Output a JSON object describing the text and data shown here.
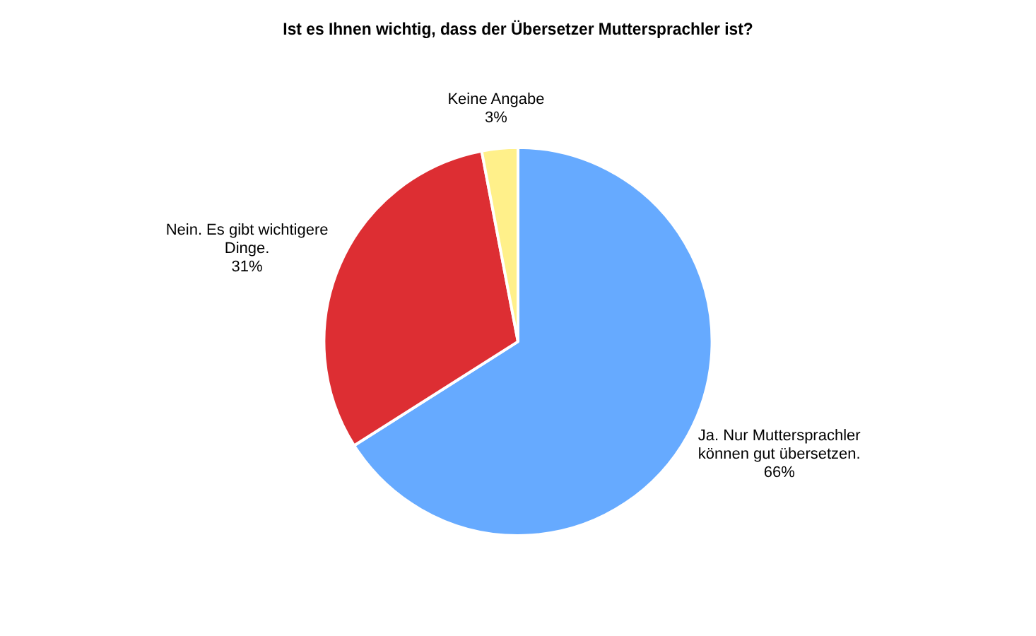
{
  "chart_data": {
    "type": "pie",
    "title": "Ist es Ihnen wichtig, dass der Übersetzer Muttersprachler ist?",
    "categories": [
      "Ja. Nur Muttersprachler können gut übersetzen.",
      "Nein. Es gibt wichtigere Dinge.",
      "Keine Angabe"
    ],
    "values": [
      66,
      31,
      3
    ],
    "colors": [
      "#66aaff",
      "#dd2e33",
      "#fff08a"
    ],
    "value_labels": [
      "66%",
      "31%",
      "3%"
    ],
    "legend": false
  }
}
